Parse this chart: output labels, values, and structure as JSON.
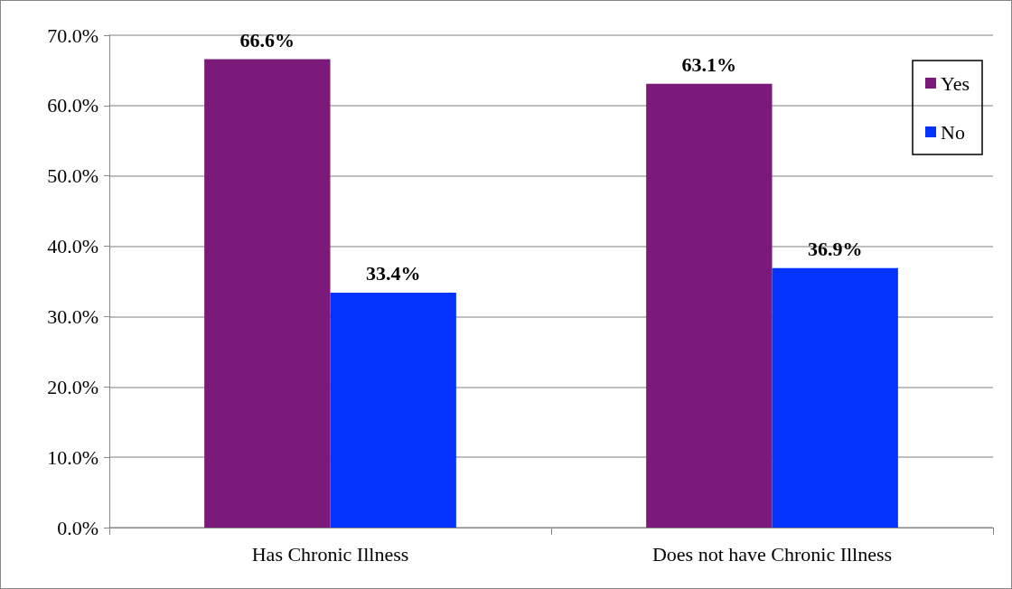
{
  "chart_data": {
    "type": "bar",
    "categories": [
      "Has Chronic Illness",
      "Does not have Chronic Illness"
    ],
    "series": [
      {
        "name": "Yes",
        "color": "#7b1a78",
        "values": [
          66.6,
          63.1
        ],
        "value_labels": [
          "66.6%",
          "63.1%"
        ]
      },
      {
        "name": "No",
        "color": "#0433ff",
        "values": [
          33.4,
          36.9
        ],
        "value_labels": [
          "33.4%",
          "36.9%"
        ]
      }
    ],
    "ylim": [
      0,
      70
    ],
    "yticks": [
      {
        "value": 0,
        "label": "0.0%"
      },
      {
        "value": 10,
        "label": "10.0%"
      },
      {
        "value": 20,
        "label": "20.0%"
      },
      {
        "value": 30,
        "label": "30.0%"
      },
      {
        "value": 40,
        "label": "40.0%"
      },
      {
        "value": 50,
        "label": "50.0%"
      },
      {
        "value": 60,
        "label": "60.0%"
      },
      {
        "value": 70,
        "label": "70.0%"
      }
    ],
    "grid": "y",
    "legend": "top right"
  }
}
